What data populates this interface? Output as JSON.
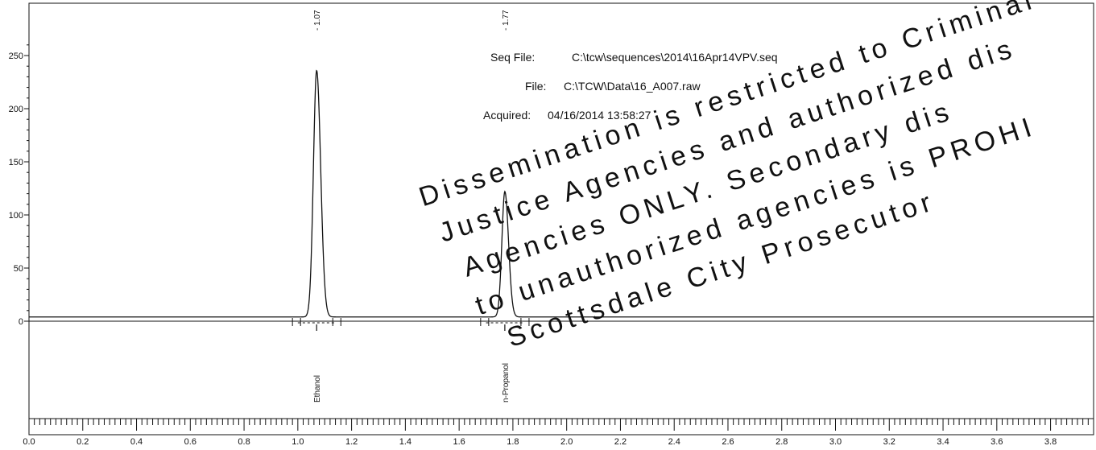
{
  "chart_data": {
    "type": "line",
    "title": "",
    "xlabel": "",
    "ylabel": "",
    "xlim": [
      0.0,
      3.96
    ],
    "ylim": [
      -117,
      265
    ],
    "x_ticks": [
      0.0,
      0.2,
      0.4,
      0.6,
      0.8,
      1.0,
      1.2,
      1.4,
      1.6,
      1.8,
      2.0,
      2.2,
      2.4,
      2.6,
      2.8,
      3.0,
      3.2,
      3.4,
      3.6,
      3.8
    ],
    "x_tick_labels": [
      "0.0",
      "0.2",
      "0.4",
      "0.6",
      "0.8",
      "1.0",
      "1.2",
      "1.4",
      "1.6",
      "1.8",
      "2.0",
      "2.2",
      "2.4",
      "2.6",
      "2.8",
      "3.0",
      "3.2",
      "3.4",
      "3.6",
      "3.8"
    ],
    "y_ticks": [
      0,
      50,
      100,
      150,
      200,
      250
    ],
    "y_tick_labels": [
      "0",
      "50",
      "100",
      "150",
      "200",
      "250"
    ],
    "baseline": 4,
    "peaks": [
      {
        "name": "Ethanol",
        "retention_time_label": "- 1.07",
        "x": 1.07,
        "height": 236,
        "width": 0.012
      },
      {
        "name": "n-Propanol",
        "retention_time_label": "- 1.77",
        "x": 1.77,
        "height": 122,
        "width": 0.011
      }
    ],
    "series": [
      {
        "values": [
          [
            0.0,
            4
          ],
          [
            1.05,
            4
          ],
          [
            1.07,
            236
          ],
          [
            1.1,
            4
          ],
          [
            1.75,
            4
          ],
          [
            1.77,
            122
          ],
          [
            1.8,
            4
          ],
          [
            3.96,
            4
          ]
        ]
      }
    ],
    "grid": false,
    "legend": "none"
  },
  "header": {
    "seq_label": "Seq File:",
    "seq_value": "C:\\tcw\\sequences\\2014\\16Apr14VPV.seq",
    "file_label": "File:",
    "file_value": "C:\\TCW\\Data\\16_A007.raw",
    "acquired_label": "Acquired:",
    "acquired_value": "04/16/2014 13:58:27"
  },
  "watermark": {
    "lines": [
      "Dissemination is restricted to Criminal",
      "Justice Agencies and authorized dis",
      "Agencies ONLY. Secondary dis",
      "to unauthorized agencies is PROHI",
      "Scottsdale City Prosecutor"
    ]
  }
}
